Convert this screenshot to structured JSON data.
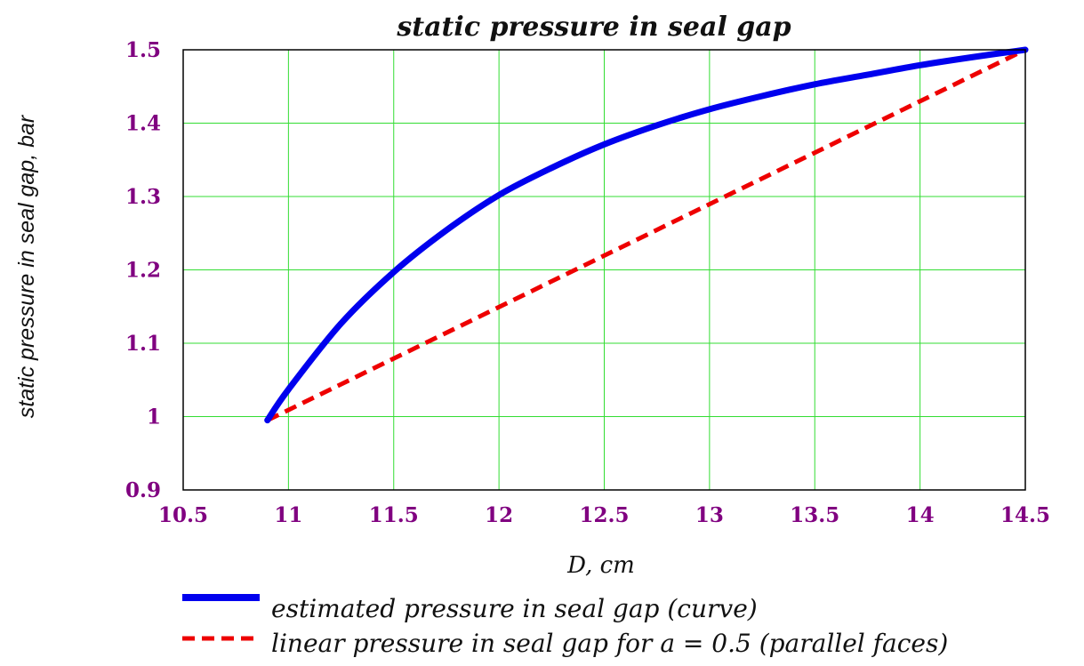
{
  "colors": {
    "grid": "#33dd33",
    "tick_label": "#800080",
    "frame": "#000000",
    "series_curve": "#0000ee",
    "series_linear": "#ee0000"
  },
  "chart_data": {
    "type": "line",
    "title": "static pressure in seal gap",
    "xlabel": "D, cm",
    "ylabel": "static pressure in seal gap, bar",
    "xlim": [
      10.5,
      14.5
    ],
    "ylim": [
      0.9,
      1.5
    ],
    "xticks": [
      "10.5",
      "11",
      "11.5",
      "12",
      "12.5",
      "13",
      "13.5",
      "14",
      "14.5"
    ],
    "yticks": [
      "0.9",
      "1",
      "1.1",
      "1.2",
      "1.3",
      "1.4",
      "1.5"
    ],
    "grid": true,
    "legend_position": "bottom",
    "series": [
      {
        "name": "estimated pressure in seal gap (curve)",
        "style": "solid",
        "x": [
          10.9,
          11.0,
          11.25,
          11.5,
          11.75,
          12.0,
          12.25,
          12.5,
          12.75,
          13.0,
          13.25,
          13.5,
          13.75,
          14.0,
          14.25,
          14.5
        ],
        "y": [
          0.995,
          1.037,
          1.127,
          1.197,
          1.254,
          1.302,
          1.339,
          1.371,
          1.397,
          1.419,
          1.437,
          1.453,
          1.466,
          1.479,
          1.49,
          1.5
        ]
      },
      {
        "name": "linear pressure in seal gap for a = 0.5 (parallel faces)",
        "style": "dashed",
        "x": [
          10.9,
          14.5
        ],
        "y": [
          0.995,
          1.5
        ]
      }
    ]
  }
}
